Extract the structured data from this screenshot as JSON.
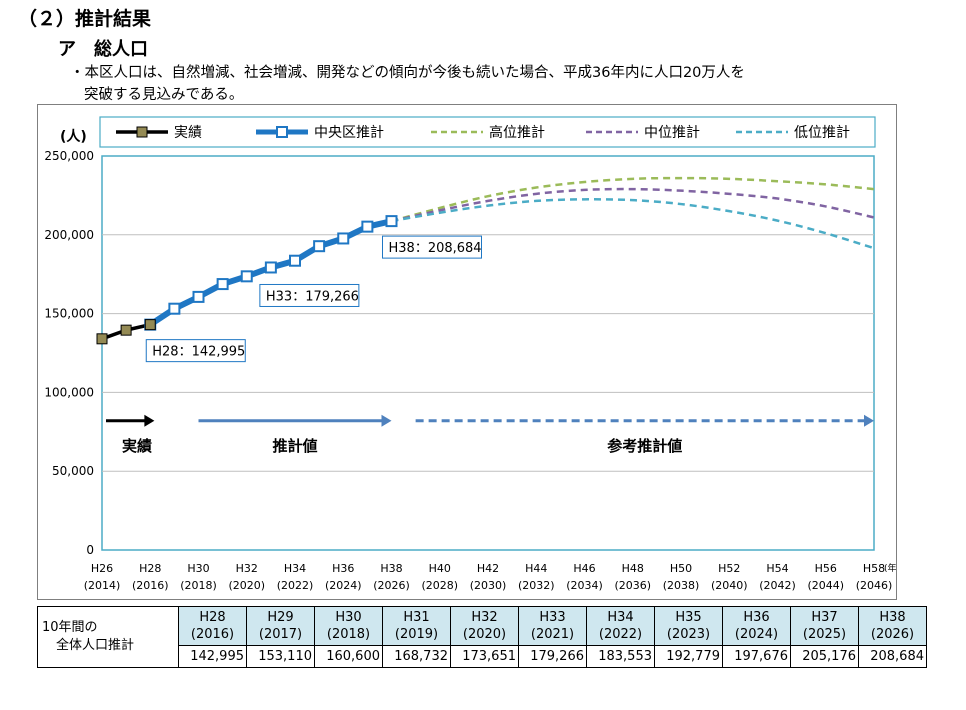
{
  "section_title": "（２）推計結果",
  "subsection_title": "ア　総人口",
  "note": {
    "line1": "・本区人口は、自然増減、社会増減、開発などの傾向が今後も続いた場合、平成36年内に人口20万人を",
    "line2": "突破する見込みである。"
  },
  "chart_data": {
    "type": "line",
    "ylabel": "(人)",
    "xlabel": "(年)",
    "ylim": [
      0,
      250000
    ],
    "yticks": [
      0,
      50000,
      100000,
      150000,
      200000,
      250000
    ],
    "ytick_labels": [
      "0",
      "50,000",
      "100,000",
      "150,000",
      "200,000",
      "250,000"
    ],
    "xtick_labels_top": [
      "H26",
      "H28",
      "H30",
      "H32",
      "H34",
      "H36",
      "H38",
      "H40",
      "H42",
      "H44",
      "H46",
      "H48",
      "H50",
      "H52",
      "H54",
      "H56",
      "H58"
    ],
    "xtick_labels_bottom": [
      "(2014)",
      "(2016)",
      "(2018)",
      "(2020)",
      "(2022)",
      "(2024)",
      "(2026)",
      "(2028)",
      "(2030)",
      "(2032)",
      "(2034)",
      "(2036)",
      "(2038)",
      "(2040)",
      "(2042)",
      "(2044)",
      "(2046)"
    ],
    "xlim": [
      2014,
      2046
    ],
    "grid": "horizontal",
    "legend_position": "top",
    "colors": {
      "actual": "#000000",
      "marker_actual": "#948a54",
      "projection": "#1f77c4",
      "high": "#9bbb59",
      "mid": "#8064a2",
      "low": "#4bacc6",
      "arrow_phase2": "#4f81bd"
    },
    "series": [
      {
        "name": "実績",
        "style": "solid-black-square",
        "x": [
          2014,
          2015,
          2016
        ],
        "y": [
          134000,
          139500,
          142995
        ]
      },
      {
        "name": "中央区推計",
        "style": "solid-blue-square",
        "x": [
          2016,
          2017,
          2018,
          2019,
          2020,
          2021,
          2022,
          2023,
          2024,
          2025,
          2026
        ],
        "y": [
          142995,
          153110,
          160600,
          168732,
          173651,
          179266,
          183553,
          192779,
          197676,
          205176,
          208684
        ]
      },
      {
        "name": "高位推計",
        "style": "dashed",
        "x": [
          2026,
          2028,
          2030,
          2032,
          2034,
          2036,
          2038,
          2040,
          2042,
          2044,
          2046
        ],
        "y": [
          208684,
          217000,
          224500,
          230000,
          233500,
          235500,
          236000,
          235500,
          234000,
          232000,
          229000
        ]
      },
      {
        "name": "中位推計",
        "style": "dashed",
        "x": [
          2026,
          2028,
          2030,
          2032,
          2034,
          2036,
          2038,
          2040,
          2042,
          2044,
          2046
        ],
        "y": [
          208684,
          215500,
          221500,
          226000,
          228500,
          229000,
          228000,
          226000,
          223000,
          218000,
          211000
        ]
      },
      {
        "name": "低位推計",
        "style": "dashed",
        "x": [
          2026,
          2028,
          2030,
          2032,
          2034,
          2036,
          2038,
          2040,
          2042,
          2044,
          2046
        ],
        "y": [
          208684,
          214000,
          218500,
          221500,
          222500,
          222000,
          219500,
          215000,
          209000,
          201000,
          191500
        ]
      }
    ],
    "annotations": [
      {
        "text": "H28：142,995",
        "x": 2016,
        "y": 142995
      },
      {
        "text": "H33：179,266",
        "x": 2021,
        "y": 179266
      },
      {
        "text": "H38：208,684",
        "x": 2026,
        "y": 208684
      }
    ],
    "phases": [
      {
        "label": "実績",
        "x_start": 2014,
        "x_end": 2017,
        "style": "solid-black"
      },
      {
        "label": "推計値",
        "x_start": 2018,
        "x_end": 2026,
        "style": "solid-blue"
      },
      {
        "label": "参考推計値",
        "x_start": 2027,
        "x_end": 2046,
        "style": "dashed-blue"
      }
    ],
    "phase_arrow_level": 82000
  },
  "table": {
    "row_header_line1": "10年間の",
    "row_header_line2": "全体人口推計",
    "columns": [
      {
        "era": "H28",
        "year": "(2016)",
        "value": "142,995"
      },
      {
        "era": "H29",
        "year": "(2017)",
        "value": "153,110"
      },
      {
        "era": "H30",
        "year": "(2018)",
        "value": "160,600"
      },
      {
        "era": "H31",
        "year": "(2019)",
        "value": "168,732"
      },
      {
        "era": "H32",
        "year": "(2020)",
        "value": "173,651"
      },
      {
        "era": "H33",
        "year": "(2021)",
        "value": "179,266"
      },
      {
        "era": "H34",
        "year": "(2022)",
        "value": "183,553"
      },
      {
        "era": "H35",
        "year": "(2023)",
        "value": "192,779"
      },
      {
        "era": "H36",
        "year": "(2024)",
        "value": "197,676"
      },
      {
        "era": "H37",
        "year": "(2025)",
        "value": "205,176"
      },
      {
        "era": "H38",
        "year": "(2026)",
        "value": "208,684"
      }
    ]
  }
}
